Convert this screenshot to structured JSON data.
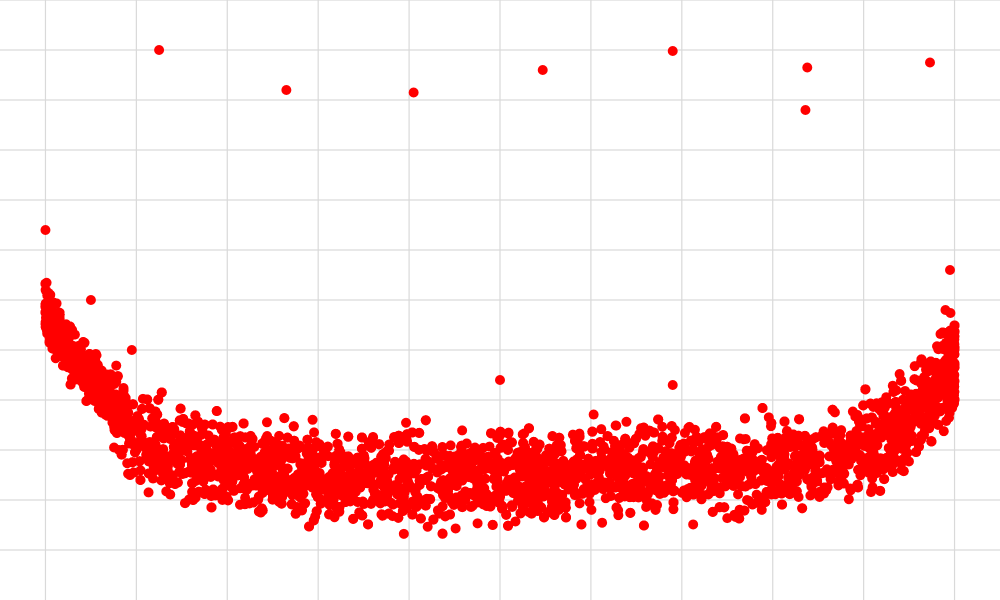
{
  "chart_data": {
    "type": "scatter",
    "title": "",
    "xlabel": "",
    "ylabel": "",
    "grid": true,
    "legend": "none",
    "xlim": [
      -0.5,
      10.5
    ],
    "ylim": [
      0,
      12
    ],
    "x_grid": [
      0,
      1,
      2,
      3,
      4,
      5,
      6,
      7,
      8,
      9,
      10
    ],
    "y_grid": [
      1,
      2,
      3,
      4,
      5,
      6,
      7,
      8,
      9,
      10,
      11,
      12
    ],
    "colors": {
      "points": "#ff0000",
      "grid": "#d9d9d9",
      "background": "#ffffff"
    },
    "bulk_band": {
      "x_range": [
        0,
        10
      ],
      "point_count": 6000,
      "lower_edge": [
        [
          0.0,
          4.9
        ],
        [
          0.3,
          4.2
        ],
        [
          0.6,
          3.4
        ],
        [
          1.0,
          1.9
        ],
        [
          1.5,
          1.6
        ],
        [
          2.5,
          1.4
        ],
        [
          3.5,
          1.2
        ],
        [
          4.5,
          1.2
        ],
        [
          5.5,
          1.3
        ],
        [
          6.5,
          1.4
        ],
        [
          7.5,
          1.4
        ],
        [
          8.5,
          1.6
        ],
        [
          9.2,
          2.0
        ],
        [
          9.6,
          2.4
        ],
        [
          10.0,
          3.2
        ]
      ],
      "upper_edge": [
        [
          0.0,
          6.8
        ],
        [
          0.2,
          5.8
        ],
        [
          0.5,
          5.2
        ],
        [
          1.0,
          4.6
        ],
        [
          1.5,
          4.1
        ],
        [
          2.5,
          3.8
        ],
        [
          3.5,
          3.6
        ],
        [
          4.5,
          3.8
        ],
        [
          5.5,
          3.7
        ],
        [
          6.5,
          4.0
        ],
        [
          7.5,
          3.8
        ],
        [
          8.5,
          4.0
        ],
        [
          9.2,
          4.4
        ],
        [
          9.6,
          5.0
        ],
        [
          10.0,
          6.2
        ]
      ]
    },
    "points": [
      {
        "x": 0.0,
        "y": 7.4
      },
      {
        "x": 1.25,
        "y": 11.0
      },
      {
        "x": 2.65,
        "y": 10.2
      },
      {
        "x": 4.05,
        "y": 10.15
      },
      {
        "x": 5.47,
        "y": 10.6
      },
      {
        "x": 6.9,
        "y": 10.98
      },
      {
        "x": 8.38,
        "y": 10.65
      },
      {
        "x": 8.36,
        "y": 9.8
      },
      {
        "x": 9.73,
        "y": 10.75
      },
      {
        "x": 5.0,
        "y": 4.4
      },
      {
        "x": 6.9,
        "y": 4.3
      },
      {
        "x": 0.95,
        "y": 5.0
      },
      {
        "x": 0.5,
        "y": 6.0
      },
      {
        "x": 9.95,
        "y": 6.6
      },
      {
        "x": 9.9,
        "y": 5.8
      }
    ]
  }
}
